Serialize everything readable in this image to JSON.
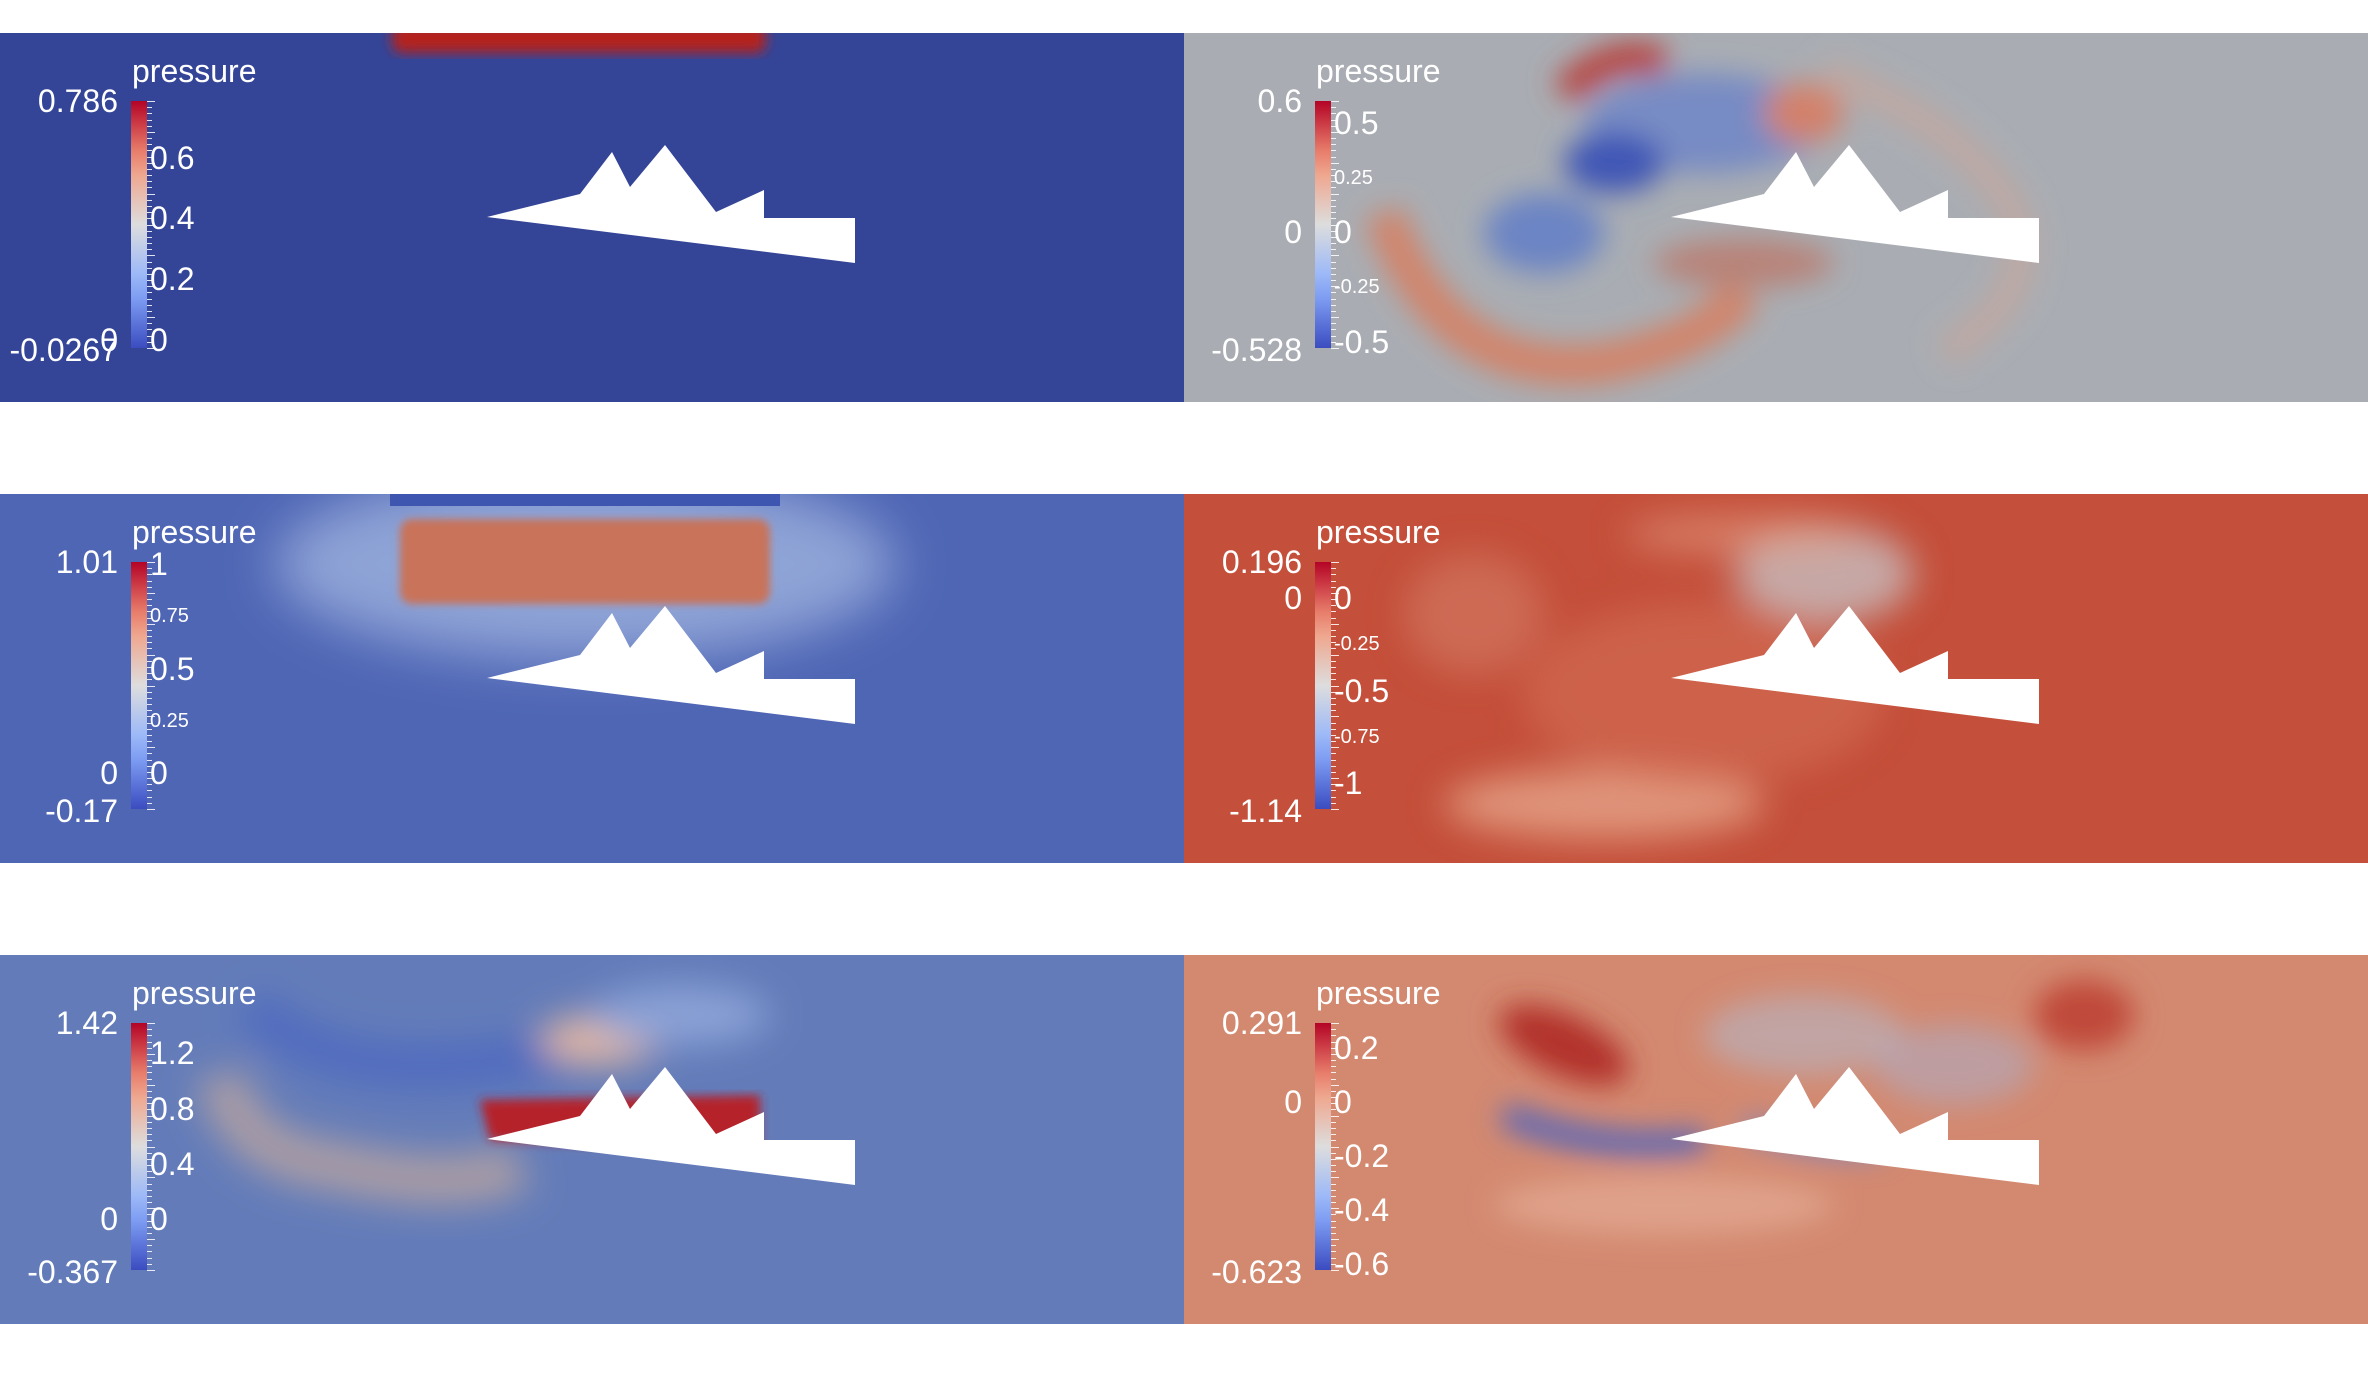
{
  "figure": {
    "panels": [
      {
        "id": "p1",
        "title": "pressure",
        "range_max": "0.786",
        "range_min": "-0.0267",
        "zero_label": "0",
        "ticks": [
          {
            "v": 0.6,
            "label": "0.6",
            "major": true
          },
          {
            "v": 0.4,
            "label": "0.4",
            "major": true
          },
          {
            "v": 0.2,
            "label": "0.2",
            "major": true
          },
          {
            "v": 0,
            "label": "0",
            "major": true
          }
        ],
        "vmin": -0.0267,
        "vmax": 0.786,
        "field": "flat-deep-blue-with-top-red-block"
      },
      {
        "id": "p2",
        "title": "pressure",
        "range_max": "0.6",
        "range_min": "-0.528",
        "zero_label": "0",
        "ticks": [
          {
            "v": 0.5,
            "label": "0.5",
            "major": true
          },
          {
            "v": 0.25,
            "label": "0.25",
            "major": false
          },
          {
            "v": 0,
            "label": "0",
            "major": true
          },
          {
            "v": -0.25,
            "label": "-0.25",
            "major": false
          },
          {
            "v": -0.5,
            "label": "-0.5",
            "major": true
          }
        ],
        "vmin": -0.528,
        "vmax": 0.6,
        "field": "grey-with-swirls"
      },
      {
        "id": "p3",
        "title": "pressure",
        "range_max": "1.01",
        "range_min": "-0.17",
        "zero_label": "0",
        "ticks": [
          {
            "v": 1,
            "label": "1",
            "major": true
          },
          {
            "v": 0.75,
            "label": "0.75",
            "major": false
          },
          {
            "v": 0.5,
            "label": "0.5",
            "major": true
          },
          {
            "v": 0.25,
            "label": "0.25",
            "major": false
          },
          {
            "v": 0,
            "label": "0",
            "major": true
          }
        ],
        "vmin": -0.17,
        "vmax": 1.01,
        "field": "blue-with-orange-block"
      },
      {
        "id": "p4",
        "title": "pressure",
        "range_max": "0.196",
        "range_min": "-1.14",
        "zero_label": "0",
        "ticks": [
          {
            "v": 0,
            "label": "0",
            "major": true
          },
          {
            "v": -0.25,
            "label": "-0.25",
            "major": false
          },
          {
            "v": -0.5,
            "label": "-0.5",
            "major": true
          },
          {
            "v": -0.75,
            "label": "-0.75",
            "major": false
          },
          {
            "v": -1,
            "label": "-1",
            "major": true
          }
        ],
        "vmin": -1.14,
        "vmax": 0.196,
        "field": "red-dominant"
      },
      {
        "id": "p5",
        "title": "pressure",
        "range_max": "1.42",
        "range_min": "-0.367",
        "zero_label": "0",
        "ticks": [
          {
            "v": 1.2,
            "label": "1.2",
            "major": true
          },
          {
            "v": 0.8,
            "label": "0.8",
            "major": true
          },
          {
            "v": 0.4,
            "label": "0.4",
            "major": true
          },
          {
            "v": 0,
            "label": "0",
            "major": true
          }
        ],
        "vmin": -0.367,
        "vmax": 1.42,
        "field": "blue-with-red-slab"
      },
      {
        "id": "p6",
        "title": "pressure",
        "range_max": "0.291",
        "range_min": "-0.623",
        "zero_label": "0",
        "ticks": [
          {
            "v": 0.2,
            "label": "0.2",
            "major": true
          },
          {
            "v": 0,
            "label": "0",
            "major": true
          },
          {
            "v": -0.2,
            "label": "-0.2",
            "major": true
          },
          {
            "v": -0.4,
            "label": "-0.4",
            "major": true
          },
          {
            "v": -0.6,
            "label": "-0.6",
            "major": true
          }
        ],
        "vmin": -0.623,
        "vmax": 0.291,
        "field": "salmon-with-patterns"
      }
    ],
    "colors": {
      "background": "#ffffff",
      "obstacle": "#ffffff",
      "cool": "#3b4cc0",
      "neutral": "#dddddd",
      "warm": "#b40426"
    }
  }
}
